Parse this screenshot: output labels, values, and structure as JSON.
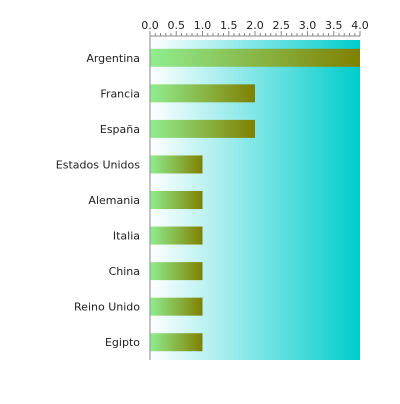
{
  "chart_data": {
    "type": "bar",
    "orientation": "horizontal",
    "categories": [
      "Argentina",
      "Francia",
      "España",
      "Estados Unidos",
      "Alemania",
      "Italia",
      "China",
      "Reino Unido",
      "Egipto"
    ],
    "values": [
      4,
      2,
      2,
      1,
      1,
      1,
      1,
      1,
      1
    ],
    "xlim": [
      0,
      4
    ],
    "x_ticks": [
      "0.0",
      "0.5",
      "1.0",
      "1.5",
      "2.0",
      "2.5",
      "3.0",
      "3.5",
      "4.0"
    ],
    "x_axis_position": "top",
    "grid": false,
    "legend": "none"
  },
  "colors": {
    "plot_bg_start": "#ffffff",
    "plot_bg_end": "#00cccc",
    "bar_start": "#90ee90",
    "bar_end": "#808000",
    "axis": "#888888",
    "text": "#222222"
  }
}
